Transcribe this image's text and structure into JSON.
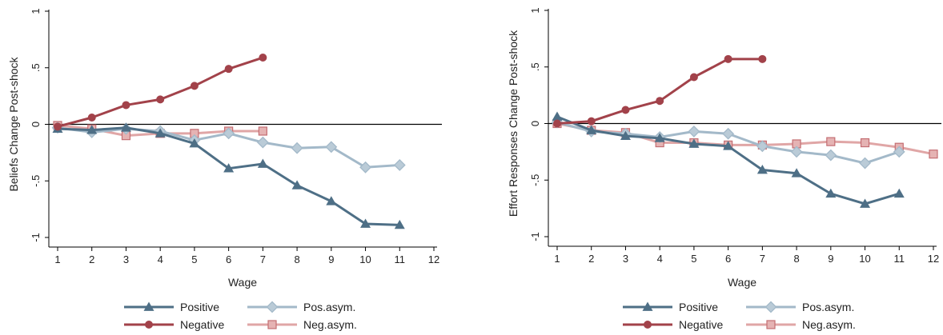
{
  "colors": {
    "Positive": "#4e6f86",
    "Negative": "#a2424a",
    "Pos.asym.": "#a3b9c9",
    "Neg.asym.": "#e0a6a6",
    "axis": "#000000"
  },
  "chart_data": [
    {
      "type": "line",
      "title": "",
      "xlabel": "Wage",
      "ylabel": "Beliefs Change Post-shock",
      "xlim": [
        1,
        12
      ],
      "ylim": [
        -1,
        1
      ],
      "xticks": [
        "1",
        "2",
        "3",
        "4",
        "5",
        "6",
        "7",
        "8",
        "9",
        "10",
        "11",
        "12"
      ],
      "yticks": [
        {
          "value": 1,
          "label": "1"
        },
        {
          "value": 0.5,
          "label": ".5"
        },
        {
          "value": 0,
          "label": "0"
        },
        {
          "value": -0.5,
          "label": "-.5"
        },
        {
          "value": -1,
          "label": "-1"
        }
      ],
      "grid": false,
      "zero_line": true,
      "legend_position": "bottom",
      "series": [
        {
          "name": "Positive",
          "marker": "triangle",
          "x": [
            1,
            2,
            3,
            4,
            5,
            6,
            7,
            8,
            9,
            10,
            11
          ],
          "y": [
            -0.04,
            -0.05,
            -0.03,
            -0.08,
            -0.17,
            -0.39,
            -0.35,
            -0.54,
            -0.68,
            -0.88,
            -0.89
          ]
        },
        {
          "name": "Negative",
          "marker": "circle",
          "x": [
            1,
            2,
            3,
            4,
            5,
            6,
            7
          ],
          "y": [
            -0.02,
            0.06,
            0.17,
            0.22,
            0.34,
            0.49,
            0.59
          ]
        },
        {
          "name": "Pos.asym.",
          "marker": "diamond",
          "x": [
            1,
            2,
            3,
            4,
            5,
            6,
            7,
            8,
            9,
            10,
            11
          ],
          "y": [
            -0.03,
            -0.07,
            -0.04,
            -0.06,
            -0.14,
            -0.08,
            -0.16,
            -0.21,
            -0.2,
            -0.38,
            -0.36
          ]
        },
        {
          "name": "Neg.asym.",
          "marker": "square",
          "x": [
            1,
            2,
            3,
            4,
            5,
            6,
            7
          ],
          "y": [
            -0.01,
            -0.04,
            -0.1,
            -0.08,
            -0.08,
            -0.06,
            -0.06
          ]
        }
      ]
    },
    {
      "type": "line",
      "title": "",
      "xlabel": "Wage",
      "ylabel": "Effort Responses Change Post-shock",
      "xlim": [
        1,
        12
      ],
      "ylim": [
        -1,
        1
      ],
      "xticks": [
        "1",
        "2",
        "3",
        "4",
        "5",
        "6",
        "7",
        "8",
        "9",
        "10",
        "11",
        "12"
      ],
      "yticks": [
        {
          "value": 1,
          "label": "1"
        },
        {
          "value": 0.5,
          "label": ".5"
        },
        {
          "value": 0,
          "label": "0"
        },
        {
          "value": -0.5,
          "label": "-.5"
        },
        {
          "value": -1,
          "label": "-1"
        }
      ],
      "grid": false,
      "zero_line": true,
      "legend_position": "bottom",
      "series": [
        {
          "name": "Positive",
          "marker": "triangle",
          "x": [
            1,
            2,
            3,
            4,
            5,
            6,
            7,
            8,
            9,
            10,
            11
          ],
          "y": [
            0.06,
            -0.06,
            -0.11,
            -0.13,
            -0.18,
            -0.2,
            -0.41,
            -0.44,
            -0.62,
            -0.71,
            -0.62
          ]
        },
        {
          "name": "Negative",
          "marker": "circle",
          "x": [
            1,
            2,
            3,
            4,
            5,
            6,
            7
          ],
          "y": [
            0.0,
            0.02,
            0.12,
            0.2,
            0.41,
            0.57,
            0.57
          ]
        },
        {
          "name": "Pos.asym.",
          "marker": "diamond",
          "x": [
            1,
            2,
            3,
            4,
            5,
            6,
            7,
            8,
            9,
            10,
            11
          ],
          "y": [
            0.01,
            -0.07,
            -0.09,
            -0.12,
            -0.07,
            -0.09,
            -0.2,
            -0.25,
            -0.28,
            -0.35,
            -0.25
          ]
        },
        {
          "name": "Neg.asym.",
          "marker": "square",
          "x": [
            1,
            2,
            3,
            4,
            5,
            6,
            7,
            8,
            9,
            10,
            11,
            12
          ],
          "y": [
            0.0,
            -0.06,
            -0.08,
            -0.17,
            -0.17,
            -0.19,
            -0.19,
            -0.18,
            -0.16,
            -0.17,
            -0.21,
            -0.27
          ]
        }
      ]
    }
  ]
}
